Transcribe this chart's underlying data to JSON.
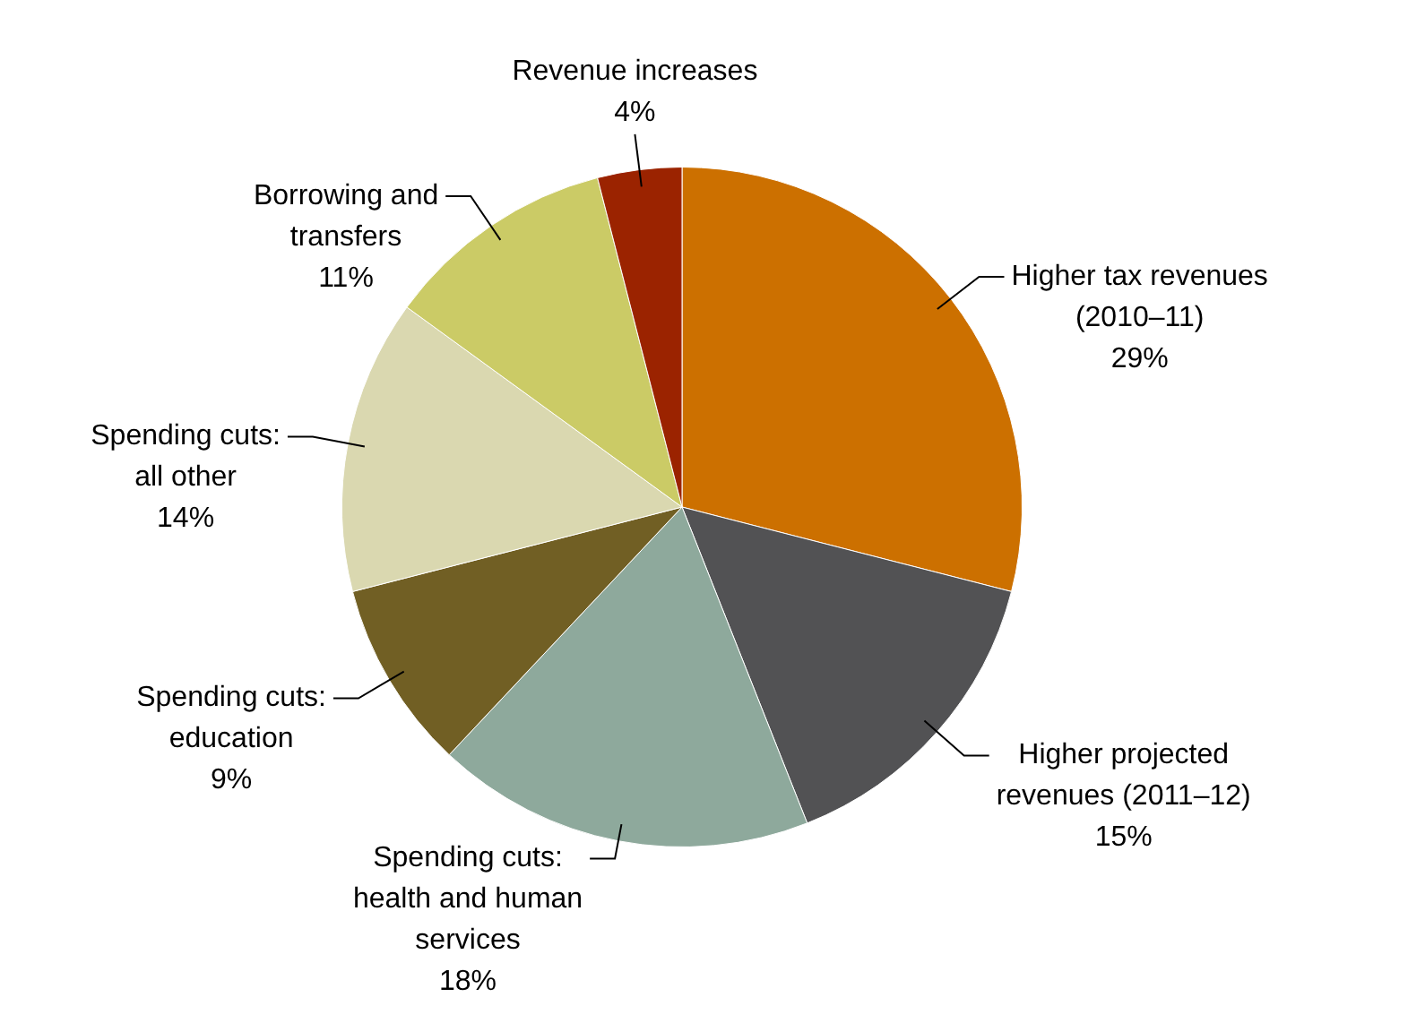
{
  "chart_data": {
    "type": "pie",
    "categories": [
      "Higher tax revenues\n(2010–11)",
      "Higher projected\nrevenues (2011–12)",
      "Spending cuts:\nhealth and human\nservices",
      "Spending cuts:\neducation",
      "Spending cuts:\nall other",
      "Borrowing and\ntransfers",
      "Revenue increases"
    ],
    "values": [
      29,
      15,
      18,
      9,
      14,
      11,
      4
    ],
    "colors": [
      "#cc7000",
      "#525254",
      "#8ea99c",
      "#715f24",
      "#dad8b0",
      "#cbcb66",
      "#9b2300"
    ],
    "value_labels": [
      "29%",
      "15%",
      "18%",
      "9%",
      "14%",
      "11%",
      "4%"
    ],
    "legend": false
  }
}
